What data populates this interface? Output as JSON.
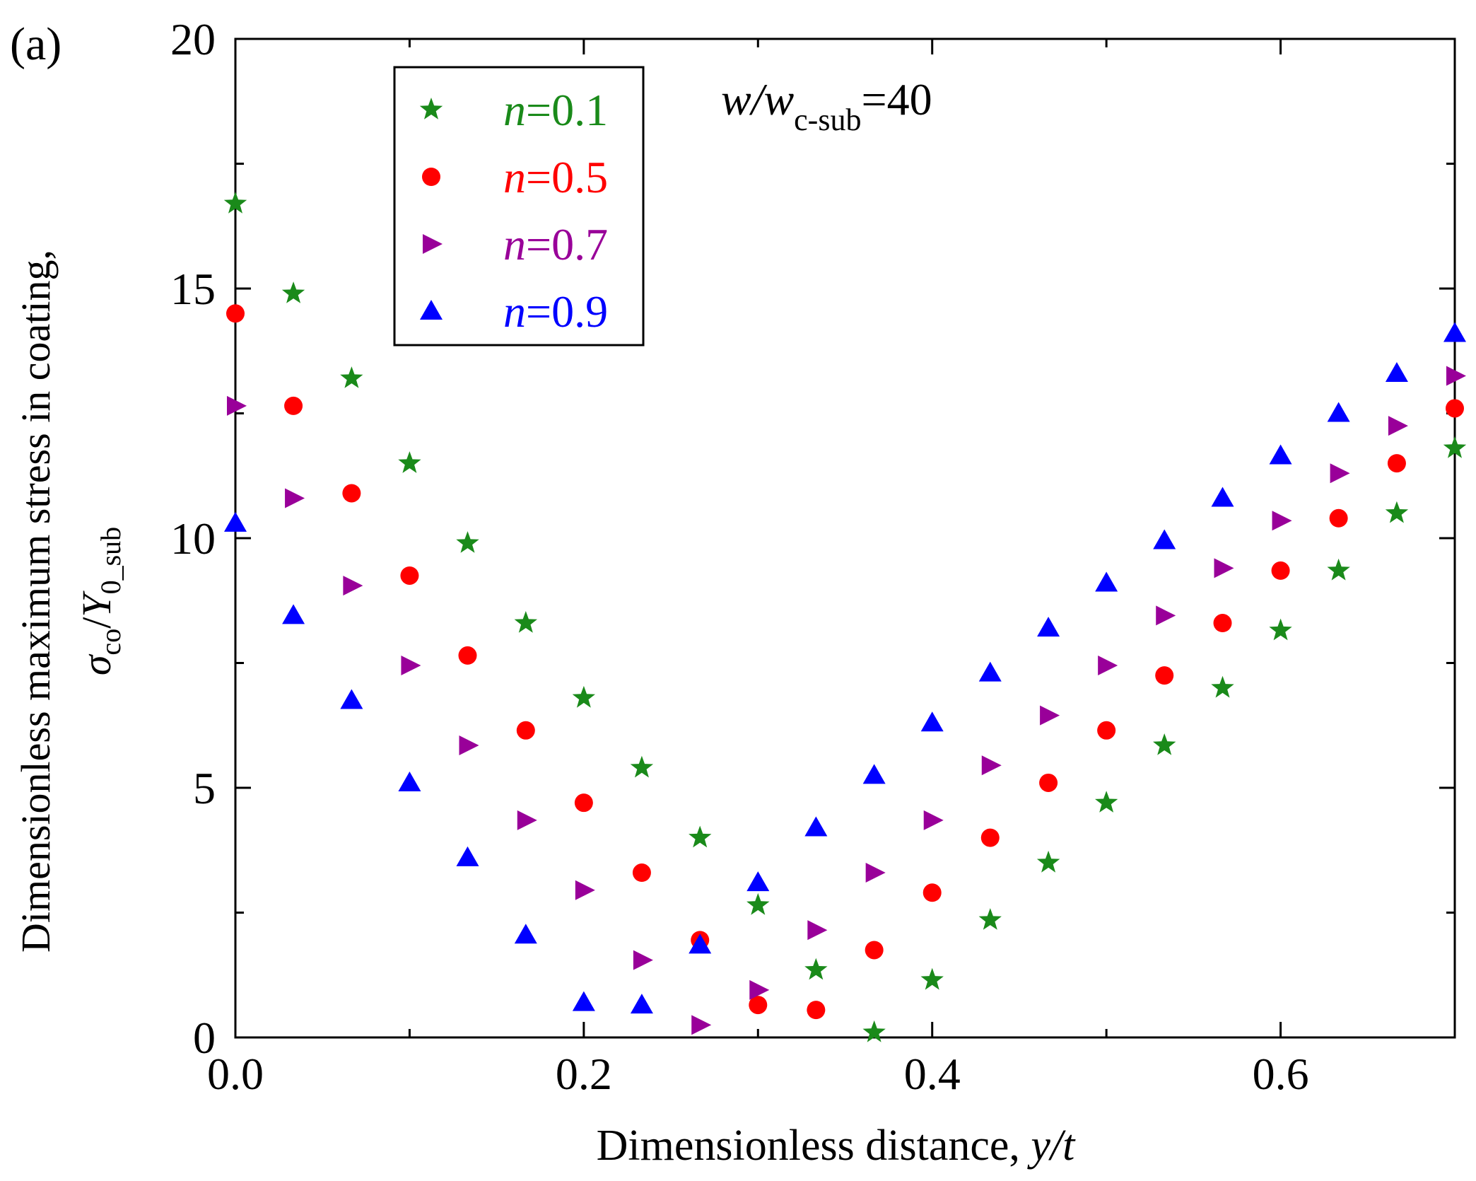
{
  "panel_label": "(a)",
  "annotation": {
    "main": "w/w",
    "sub": "c-sub",
    "suffix": "=40"
  },
  "chart_data": {
    "type": "scatter",
    "title": "",
    "xlabel": "Dimensionless distance, y/t",
    "xlabel_parts": {
      "text": "Dimensionless distance, ",
      "italic": "y/t"
    },
    "ylabel": "Dimensionless maximum stress in coating, σco/Y0_sub",
    "ylabel_parts": {
      "line1": "Dimensionless maximum stress in coating,",
      "sigma": "σ",
      "sigma_sub": "co",
      "slash": "/",
      "Y": "Y",
      "Y_sub": "0_sub"
    },
    "xlim": [
      0,
      0.7
    ],
    "ylim": [
      0,
      20
    ],
    "xticks": [
      0.0,
      0.2,
      0.4,
      0.6
    ],
    "xtick_labels": [
      "0.0",
      "0.2",
      "0.4",
      "0.6"
    ],
    "yticks": [
      0,
      5,
      10,
      15,
      20
    ],
    "ytick_labels": [
      "0",
      "5",
      "10",
      "15",
      "20"
    ],
    "grid": false,
    "legend": {
      "position": "top-left"
    },
    "x": [
      0,
      0.0333,
      0.0667,
      0.1,
      0.1333,
      0.1667,
      0.2,
      0.2333,
      0.2667,
      0.3,
      0.3333,
      0.3667,
      0.4,
      0.4333,
      0.4667,
      0.5,
      0.5333,
      0.5667,
      0.6,
      0.6333,
      0.6667,
      0.7
    ],
    "series": [
      {
        "name": "n=0.1",
        "prefix": "n",
        "value": "=0.1",
        "marker": "star",
        "color": "#1a8a1a",
        "values": [
          16.7,
          14.9,
          13.2,
          11.5,
          9.9,
          8.3,
          6.8,
          5.4,
          4.0,
          2.65,
          1.35,
          0.1,
          1.15,
          2.35,
          3.5,
          4.7,
          5.85,
          7.0,
          8.15,
          9.35,
          10.5,
          11.8
        ]
      },
      {
        "name": "n=0.5",
        "prefix": "n",
        "value": "=0.5",
        "marker": "circle",
        "color": "#ff0000",
        "values": [
          14.5,
          12.65,
          10.9,
          9.25,
          7.65,
          6.15,
          4.7,
          3.3,
          1.95,
          0.65,
          0.55,
          1.75,
          2.9,
          4.0,
          5.1,
          6.15,
          7.25,
          8.3,
          9.35,
          10.4,
          11.5,
          12.6
        ]
      },
      {
        "name": "n=0.7",
        "prefix": "n",
        "value": "=0.7",
        "marker": "triangle-right",
        "color": "#990099",
        "values": [
          12.65,
          10.8,
          9.05,
          7.45,
          5.85,
          4.35,
          2.95,
          1.55,
          0.25,
          0.95,
          2.15,
          3.3,
          4.35,
          5.45,
          6.45,
          7.45,
          8.45,
          9.4,
          10.35,
          11.3,
          12.25,
          13.25
        ]
      },
      {
        "name": "n=0.9",
        "prefix": "n",
        "value": "=0.9",
        "marker": "triangle-up",
        "color": "#0000ff",
        "values": [
          10.3,
          8.45,
          6.75,
          5.1,
          3.6,
          2.05,
          0.7,
          0.65,
          1.85,
          3.1,
          4.2,
          5.25,
          6.3,
          7.3,
          8.2,
          9.1,
          9.95,
          10.8,
          11.65,
          12.5,
          13.3,
          14.1
        ]
      }
    ]
  }
}
